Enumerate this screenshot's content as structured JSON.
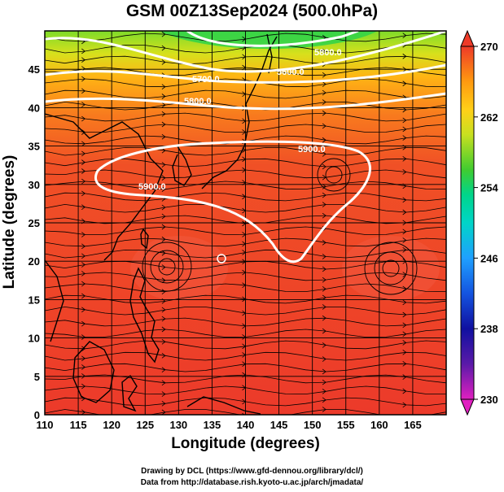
{
  "title": "GSM 00Z13Sep2024 (500.0hPa)",
  "xlabel": "Longitude (degrees)",
  "ylabel": "Latitude  (degrees)",
  "credits": [
    "Drawing by DCL (https://www.gfd-dennou.org/library/dcl/)",
    "Data from http://database.rish.kyoto-u.ac.jp/arch/jmadata/"
  ],
  "map_data": {
    "type": "heatmap",
    "field": "500 hPa temperature shading with geopotential height contours and wind streamlines",
    "lon_range": [
      110,
      170
    ],
    "lat_range": [
      0,
      50
    ],
    "x_ticks": [
      110,
      115,
      120,
      125,
      130,
      135,
      140,
      145,
      150,
      155,
      160,
      165
    ],
    "y_ticks": [
      0,
      5,
      10,
      15,
      20,
      25,
      30,
      35,
      40,
      45
    ],
    "grid": true,
    "colorbar": {
      "ticks": [
        230,
        238,
        246,
        254,
        262,
        270
      ],
      "range": [
        230,
        270
      ],
      "colors": [
        "#e020c0",
        "#1010a0",
        "#1fa0ff",
        "#00d5a0",
        "#40cc30",
        "#e0e020",
        "#ff9a10",
        "#ee3a28"
      ]
    },
    "contour_labels": [
      "5800.0",
      "5700.0",
      "5600.0",
      "5800.0",
      "5900.0",
      "5900.0"
    ],
    "contour_color": "#ffffff"
  }
}
